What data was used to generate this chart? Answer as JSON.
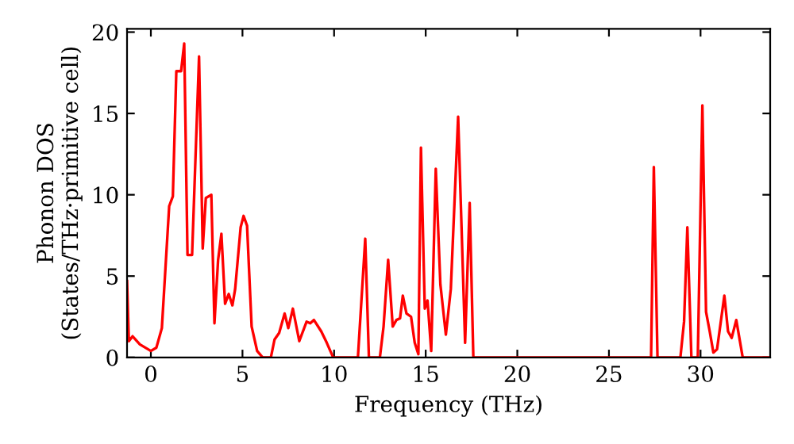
{
  "chart_data": {
    "type": "line",
    "xlabel": "Frequency (THz)",
    "ylabel": "Phonon DOS\n(States/THz·primitive cell)",
    "xlim": [
      -1.3,
      33.8
    ],
    "ylim": [
      0,
      20.2
    ],
    "xticks": [
      0,
      5,
      10,
      15,
      20,
      25,
      30
    ],
    "yticks": [
      0,
      5,
      10,
      15,
      20
    ],
    "grid": false,
    "legend": false,
    "marker": "none",
    "line_style": "solid",
    "series": [
      {
        "color": "#ff0000",
        "x": [
          -1.3,
          -1.2,
          -1.0,
          -0.6,
          0,
          0.3,
          0.6,
          1.0,
          1.2,
          1.39,
          1.65,
          1.82,
          2.0,
          2.25,
          2.63,
          2.83,
          3.0,
          3.3,
          3.47,
          3.67,
          3.85,
          4.05,
          4.25,
          4.45,
          4.6,
          4.9,
          5.06,
          5.25,
          5.5,
          5.8,
          6.1,
          6.55,
          6.75,
          7.0,
          7.3,
          7.5,
          7.75,
          8.1,
          8.5,
          8.7,
          8.9,
          9.3,
          9.6,
          9.95,
          11.3,
          11.7,
          11.9,
          12.5,
          12.7,
          12.95,
          13.2,
          13.4,
          13.6,
          13.75,
          13.95,
          14.2,
          14.4,
          14.6,
          14.74,
          14.95,
          15.1,
          15.3,
          15.55,
          15.8,
          16.1,
          16.37,
          16.77,
          17.15,
          17.4,
          17.6,
          27.3,
          27.45,
          27.65,
          28.9,
          29.1,
          29.28,
          29.5,
          29.85,
          30.1,
          30.3,
          30.5,
          30.7,
          30.9,
          31.3,
          31.5,
          31.7,
          31.95,
          32.3,
          33.8
        ],
        "values": [
          4.7,
          1.0,
          1.3,
          0.8,
          0.4,
          0.6,
          1.8,
          9.3,
          9.9,
          17.6,
          17.6,
          19.3,
          6.3,
          6.3,
          18.5,
          6.7,
          9.8,
          10.0,
          2.1,
          6.0,
          7.6,
          3.3,
          3.9,
          3.2,
          4.2,
          8.0,
          8.7,
          8.1,
          1.9,
          0.4,
          0,
          0,
          1.1,
          1.5,
          2.7,
          1.8,
          3.0,
          1.0,
          2.2,
          2.1,
          2.3,
          1.6,
          0.9,
          0,
          0,
          7.3,
          0,
          0,
          1.9,
          6.0,
          1.9,
          2.3,
          2.4,
          3.8,
          2.7,
          2.5,
          0.9,
          0.2,
          12.9,
          3.0,
          3.5,
          0.4,
          11.6,
          4.5,
          1.4,
          4.2,
          14.8,
          0.9,
          9.5,
          0,
          0,
          11.7,
          0,
          0,
          2.2,
          8.0,
          0,
          0,
          15.5,
          2.8,
          1.6,
          0.3,
          0.5,
          3.8,
          1.6,
          1.2,
          2.3,
          0,
          0
        ]
      }
    ]
  }
}
